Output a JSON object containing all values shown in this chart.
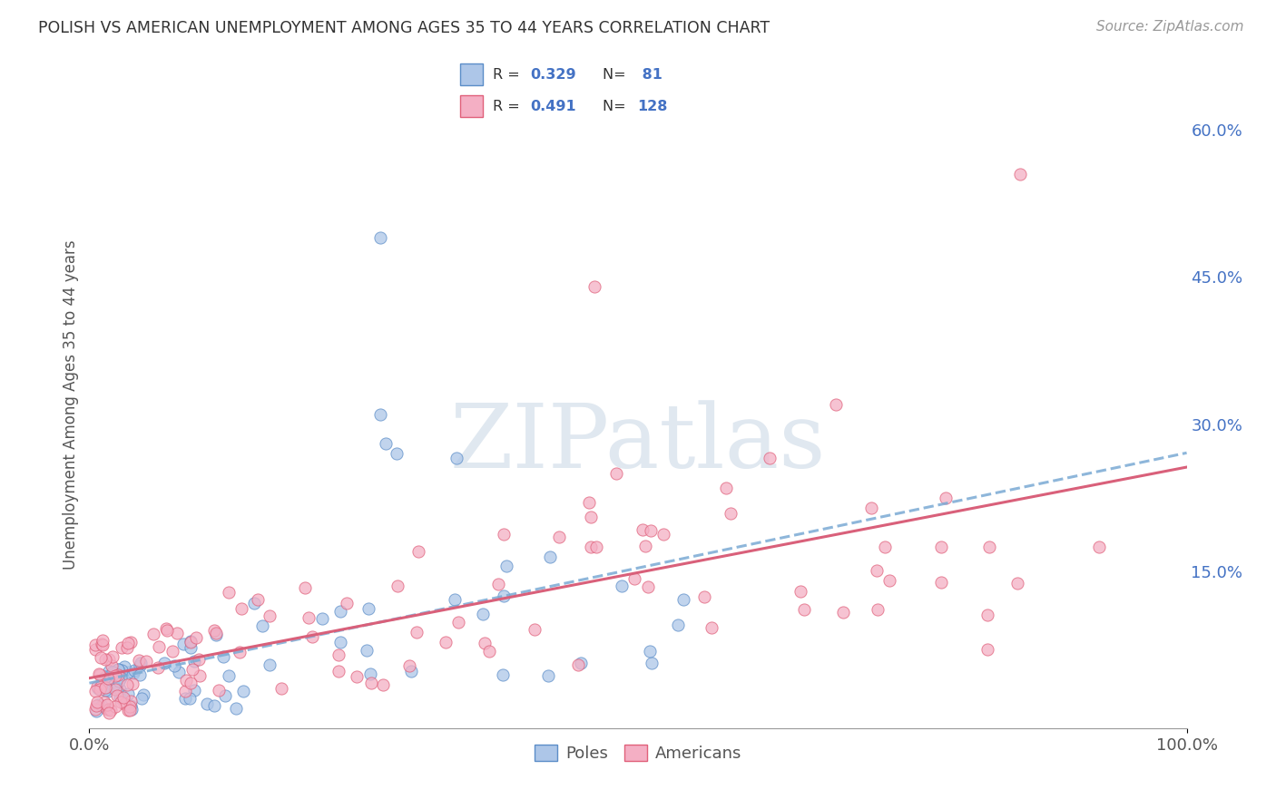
{
  "title": "POLISH VS AMERICAN UNEMPLOYMENT AMONG AGES 35 TO 44 YEARS CORRELATION CHART",
  "source": "Source: ZipAtlas.com",
  "ylabel": "Unemployment Among Ages 35 to 44 years",
  "xlim": [
    0,
    1.0
  ],
  "ylim": [
    -0.01,
    0.65
  ],
  "xtick_positions": [
    0.0,
    1.0
  ],
  "xtick_labels": [
    "0.0%",
    "100.0%"
  ],
  "ytick_values": [
    0.15,
    0.3,
    0.45,
    0.6
  ],
  "ytick_labels": [
    "15.0%",
    "30.0%",
    "45.0%",
    "60.0%"
  ],
  "poles_R": "0.329",
  "poles_N": "81",
  "americans_R": "0.491",
  "americans_N": "128",
  "poles_face_color": "#adc6e8",
  "poles_edge_color": "#5b8dc8",
  "americans_face_color": "#f4afc4",
  "americans_edge_color": "#e0607a",
  "poles_trend_color": "#7aaad4",
  "poles_trend_style": "--",
  "americans_trend_color": "#d9607a",
  "americans_trend_style": "-",
  "background_color": "#ffffff",
  "grid_color": "#cccccc",
  "right_tick_color": "#4472c4",
  "ylabel_color": "#555555",
  "title_color": "#333333",
  "source_color": "#999999",
  "watermark_text": "ZIPatlas",
  "watermark_color": "#e0e8f0",
  "legend_text_color": "#4472c4",
  "legend_label_color": "#333333"
}
